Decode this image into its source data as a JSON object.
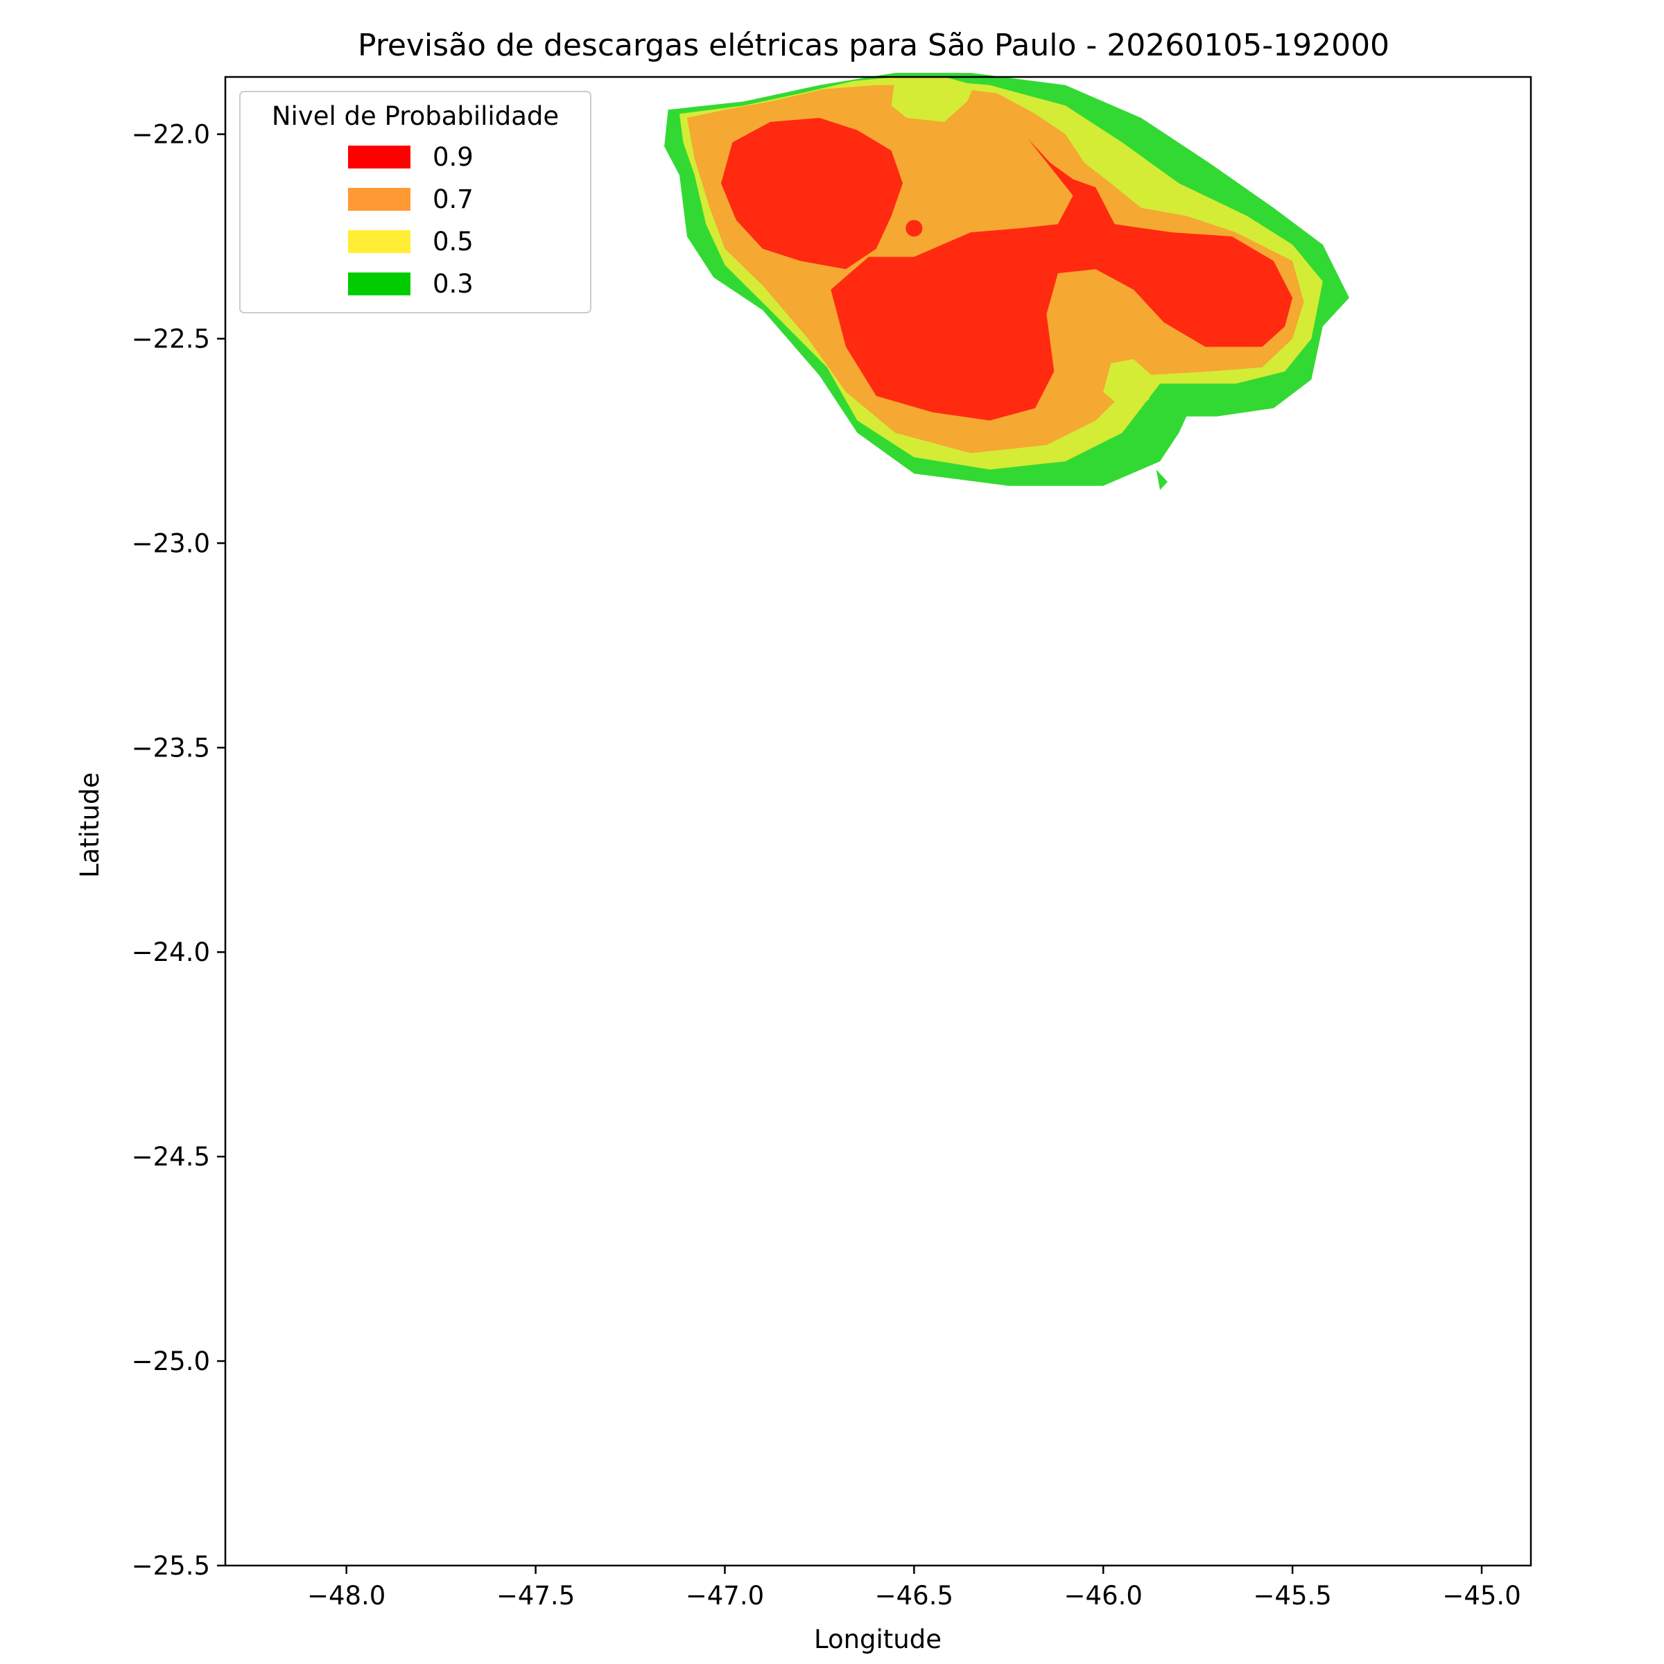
{
  "chart_data": {
    "type": "contourf",
    "title": "Previsão de descargas elétricas para São Paulo - 20260105-192000",
    "xlabel": "Longitude",
    "ylabel": "Latitude",
    "xlim": [
      -48.32,
      -44.87
    ],
    "ylim": [
      -25.5,
      -21.86
    ],
    "xticks": [
      -48.0,
      -47.5,
      -47.0,
      -46.5,
      -46.0,
      -45.5,
      -45.0
    ],
    "xtick_labels": [
      "−48.0",
      "−47.5",
      "−47.0",
      "−46.5",
      "−46.0",
      "−45.5",
      "−45.0"
    ],
    "yticks": [
      -22.0,
      -22.5,
      -23.0,
      -23.5,
      -24.0,
      -24.5,
      -25.0,
      -25.5
    ],
    "ytick_labels": [
      "−22.0",
      "−22.5",
      "−23.0",
      "−23.5",
      "−24.0",
      "−24.5",
      "−25.0",
      "−25.5"
    ],
    "grid": false,
    "legend": {
      "title": "Nivel de Probabilidade",
      "placement": "upper-left",
      "entries": [
        {
          "label": "0.9",
          "color": "#ff0000"
        },
        {
          "label": "0.7",
          "color": "#ff9933"
        },
        {
          "label": "0.5",
          "color": "#ffee33"
        },
        {
          "label": "0.3",
          "color": "#00cc00"
        }
      ]
    },
    "fill_colors": {
      "0.3": "#33d933",
      "0.5": "#d4ec36",
      "0.7": "#f5a832",
      "0.9": "#ff2a10"
    },
    "regions": [
      {
        "level": "0.3",
        "lonlat": [
          [
            -47.15,
            -21.94
          ],
          [
            -46.95,
            -21.92
          ],
          [
            -46.75,
            -21.88
          ],
          [
            -46.55,
            -21.85
          ],
          [
            -46.35,
            -21.85
          ],
          [
            -46.1,
            -21.88
          ],
          [
            -45.9,
            -21.96
          ],
          [
            -45.72,
            -22.07
          ],
          [
            -45.55,
            -22.18
          ],
          [
            -45.42,
            -22.27
          ],
          [
            -45.35,
            -22.4
          ],
          [
            -45.42,
            -22.47
          ],
          [
            -45.45,
            -22.6
          ],
          [
            -45.55,
            -22.67
          ],
          [
            -45.7,
            -22.69
          ],
          [
            -45.78,
            -22.69
          ],
          [
            -45.8,
            -22.73
          ],
          [
            -45.85,
            -22.8
          ],
          [
            -46.0,
            -22.86
          ],
          [
            -46.25,
            -22.86
          ],
          [
            -46.5,
            -22.83
          ],
          [
            -46.65,
            -22.73
          ],
          [
            -46.75,
            -22.59
          ],
          [
            -46.9,
            -22.43
          ],
          [
            -47.03,
            -22.35
          ],
          [
            -47.1,
            -22.25
          ],
          [
            -47.12,
            -22.1
          ],
          [
            -47.16,
            -22.03
          ]
        ]
      },
      {
        "level": "0.3",
        "lonlat": [
          [
            -45.86,
            -22.82
          ],
          [
            -45.83,
            -22.85
          ],
          [
            -45.85,
            -22.87
          ]
        ]
      },
      {
        "level": "0.5",
        "lonlat": [
          [
            -47.12,
            -21.95
          ],
          [
            -46.95,
            -21.93
          ],
          [
            -46.8,
            -21.9
          ],
          [
            -46.66,
            -21.87
          ],
          [
            -46.55,
            -21.86
          ],
          [
            -46.3,
            -21.88
          ],
          [
            -46.1,
            -21.93
          ],
          [
            -45.95,
            -22.02
          ],
          [
            -45.8,
            -22.12
          ],
          [
            -45.62,
            -22.2
          ],
          [
            -45.5,
            -22.27
          ],
          [
            -45.42,
            -22.36
          ],
          [
            -45.45,
            -22.5
          ],
          [
            -45.52,
            -22.58
          ],
          [
            -45.65,
            -22.61
          ],
          [
            -45.85,
            -22.61
          ],
          [
            -45.95,
            -22.73
          ],
          [
            -46.1,
            -22.8
          ],
          [
            -46.3,
            -22.82
          ],
          [
            -46.5,
            -22.79
          ],
          [
            -46.65,
            -22.7
          ],
          [
            -46.73,
            -22.57
          ],
          [
            -46.88,
            -22.43
          ],
          [
            -47.0,
            -22.32
          ],
          [
            -47.05,
            -22.22
          ],
          [
            -47.08,
            -22.1
          ],
          [
            -47.11,
            -22.02
          ]
        ]
      },
      {
        "level": "0.7",
        "lonlat": [
          [
            -47.1,
            -21.96
          ],
          [
            -47.0,
            -21.94
          ],
          [
            -46.88,
            -21.92
          ],
          [
            -46.74,
            -21.89
          ],
          [
            -46.6,
            -21.88
          ],
          [
            -46.45,
            -21.88
          ],
          [
            -46.28,
            -21.9
          ],
          [
            -46.18,
            -21.95
          ],
          [
            -46.1,
            -22.0
          ],
          [
            -46.05,
            -22.07
          ],
          [
            -45.98,
            -22.12
          ],
          [
            -45.9,
            -22.18
          ],
          [
            -45.78,
            -22.2
          ],
          [
            -45.65,
            -22.24
          ],
          [
            -45.5,
            -22.31
          ],
          [
            -45.47,
            -22.41
          ],
          [
            -45.5,
            -22.5
          ],
          [
            -45.58,
            -22.57
          ],
          [
            -45.72,
            -22.58
          ],
          [
            -45.9,
            -22.59
          ],
          [
            -46.02,
            -22.7
          ],
          [
            -46.15,
            -22.76
          ],
          [
            -46.35,
            -22.78
          ],
          [
            -46.55,
            -22.73
          ],
          [
            -46.68,
            -22.63
          ],
          [
            -46.78,
            -22.5
          ],
          [
            -46.9,
            -22.37
          ],
          [
            -47.0,
            -22.28
          ],
          [
            -47.04,
            -22.18
          ],
          [
            -47.08,
            -22.06
          ]
        ]
      },
      {
        "level": "0.5",
        "lonlat": [
          [
            -46.55,
            -21.86
          ],
          [
            -46.42,
            -21.86
          ],
          [
            -46.34,
            -21.88
          ],
          [
            -46.36,
            -21.92
          ],
          [
            -46.42,
            -21.97
          ],
          [
            -46.52,
            -21.96
          ],
          [
            -46.56,
            -21.93
          ]
        ]
      },
      {
        "level": "0.5",
        "lonlat": [
          [
            -45.98,
            -22.56
          ],
          [
            -45.92,
            -22.55
          ],
          [
            -45.86,
            -22.6
          ],
          [
            -45.88,
            -22.65
          ],
          [
            -45.95,
            -22.67
          ],
          [
            -46.0,
            -22.63
          ]
        ]
      },
      {
        "level": "0.9",
        "lonlat": [
          [
            -46.98,
            -22.02
          ],
          [
            -46.88,
            -21.97
          ],
          [
            -46.75,
            -21.96
          ],
          [
            -46.65,
            -21.99
          ],
          [
            -46.56,
            -22.04
          ],
          [
            -46.53,
            -22.12
          ],
          [
            -46.56,
            -22.2
          ],
          [
            -46.6,
            -22.28
          ],
          [
            -46.68,
            -22.33
          ],
          [
            -46.8,
            -22.31
          ],
          [
            -46.9,
            -22.28
          ],
          [
            -46.97,
            -22.21
          ],
          [
            -47.01,
            -22.12
          ]
        ]
      },
      {
        "level": "0.9",
        "lonlat": [
          [
            -46.2,
            -22.01
          ],
          [
            -46.14,
            -22.07
          ],
          [
            -46.08,
            -22.11
          ],
          [
            -46.02,
            -22.13
          ],
          [
            -45.97,
            -22.22
          ],
          [
            -45.82,
            -22.24
          ],
          [
            -45.66,
            -22.25
          ],
          [
            -45.55,
            -22.31
          ],
          [
            -45.5,
            -22.4
          ],
          [
            -45.52,
            -22.47
          ],
          [
            -45.58,
            -22.52
          ],
          [
            -45.73,
            -22.52
          ],
          [
            -45.84,
            -22.46
          ],
          [
            -45.92,
            -22.38
          ],
          [
            -46.02,
            -22.33
          ],
          [
            -46.12,
            -22.34
          ],
          [
            -46.15,
            -22.44
          ],
          [
            -46.13,
            -22.58
          ],
          [
            -46.18,
            -22.67
          ],
          [
            -46.3,
            -22.7
          ],
          [
            -46.45,
            -22.68
          ],
          [
            -46.6,
            -22.64
          ],
          [
            -46.68,
            -22.52
          ],
          [
            -46.72,
            -22.38
          ],
          [
            -46.62,
            -22.3
          ],
          [
            -46.5,
            -22.3
          ],
          [
            -46.35,
            -22.24
          ],
          [
            -46.22,
            -22.23
          ],
          [
            -46.12,
            -22.22
          ],
          [
            -46.08,
            -22.15
          ]
        ]
      },
      {
        "level": "0.9",
        "lonlat": [
          [
            -46.5,
            -22.23
          ]
        ],
        "marker": true
      }
    ]
  }
}
